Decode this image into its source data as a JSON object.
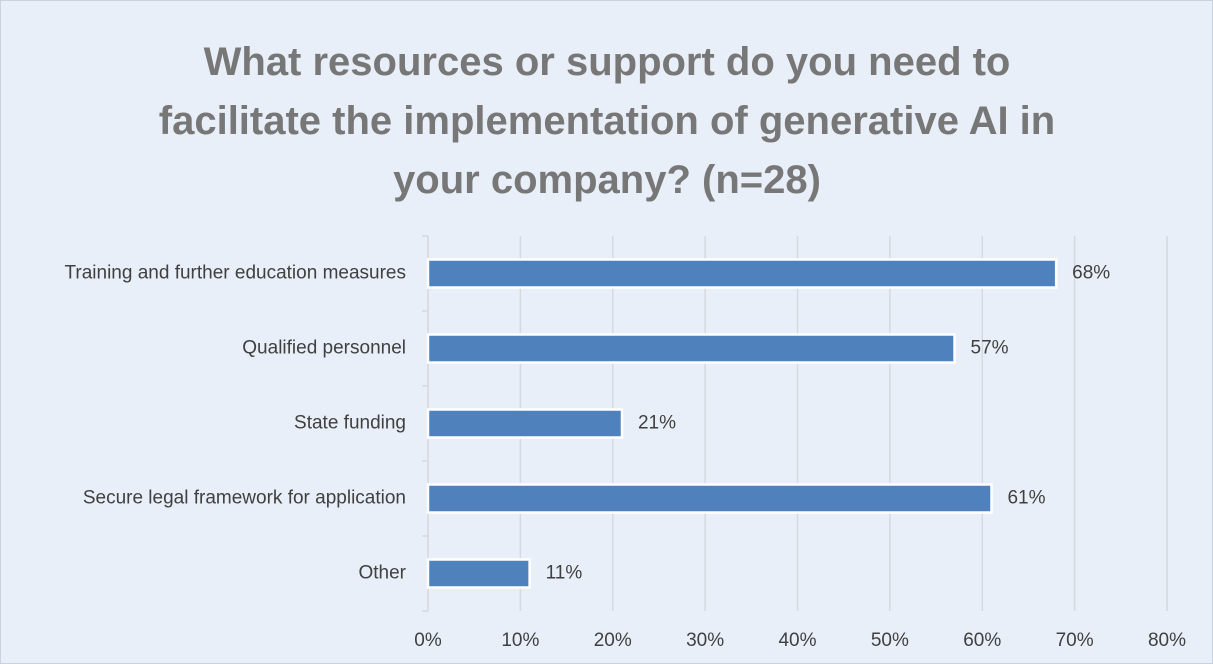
{
  "chart_data": {
    "type": "bar",
    "orientation": "horizontal",
    "title": "What resources or support do you need to facilitate the implementation of generative AI in your company? (n=28)",
    "categories": [
      "Training and further education measures",
      "Qualified personnel",
      "State funding",
      "Secure legal framework for application",
      "Other"
    ],
    "values": [
      68,
      57,
      21,
      61,
      11
    ],
    "value_labels": [
      "68%",
      "57%",
      "21%",
      "61%",
      "11%"
    ],
    "color": "#4f81bd",
    "xlim": [
      0,
      80
    ],
    "xticks": [
      {
        "value": 0,
        "label": "0%"
      },
      {
        "value": 10,
        "label": "10%"
      },
      {
        "value": 20,
        "label": "20%"
      },
      {
        "value": 30,
        "label": "30%"
      },
      {
        "value": 40,
        "label": "40%"
      },
      {
        "value": 50,
        "label": "50%"
      },
      {
        "value": 60,
        "label": "60%"
      },
      {
        "value": 70,
        "label": "70%"
      },
      {
        "value": 80,
        "label": "80%"
      }
    ],
    "grid": true
  }
}
